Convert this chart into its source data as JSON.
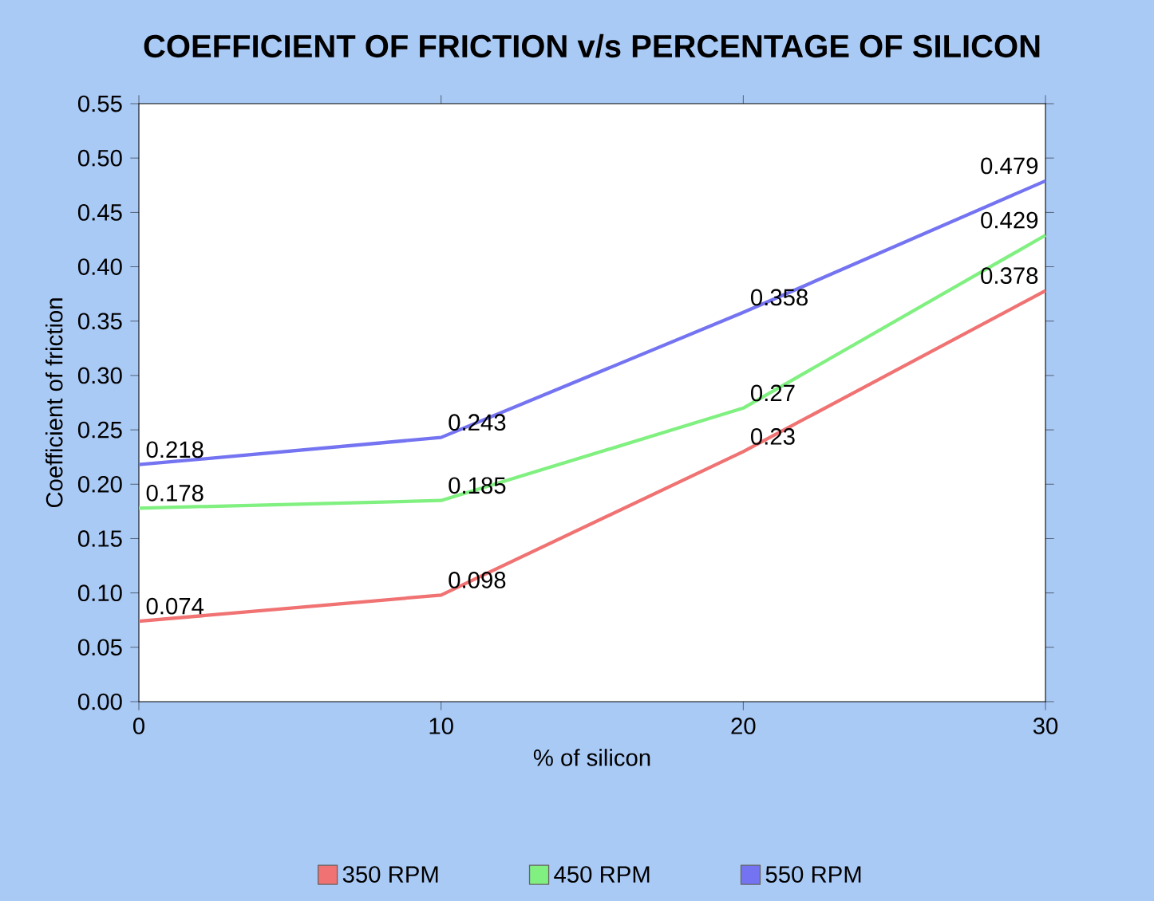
{
  "chart_data": {
    "type": "line",
    "title": "COEFFICIENT OF FRICTION v/s PERCENTAGE OF SILICON",
    "xlabel": "% of silicon",
    "ylabel": "Coefficient of friction",
    "x": [
      0,
      10,
      20,
      30
    ],
    "series": [
      {
        "name": "350 RPM",
        "color": "#f07272",
        "values": [
          0.074,
          0.098,
          0.23,
          0.378
        ]
      },
      {
        "name": "450 RPM",
        "color": "#80f080",
        "values": [
          0.178,
          0.185,
          0.27,
          0.429
        ]
      },
      {
        "name": "550 RPM",
        "color": "#7474f2",
        "values": [
          0.218,
          0.243,
          0.358,
          0.479
        ]
      }
    ],
    "xlim": [
      0,
      30
    ],
    "xticks": [
      0,
      10,
      20,
      30
    ],
    "ylim": [
      0,
      0.55
    ],
    "yticks": [
      {
        "value": 0,
        "label": "0.00"
      },
      {
        "value": 0.05,
        "label": "0.05"
      },
      {
        "value": 0.1,
        "label": "0.10"
      },
      {
        "value": 0.15,
        "label": "0.15"
      },
      {
        "value": 0.2,
        "label": "0.20"
      },
      {
        "value": 0.25,
        "label": "0.25"
      },
      {
        "value": 0.3,
        "label": "0.30"
      },
      {
        "value": 0.35,
        "label": "0.35"
      },
      {
        "value": 0.4,
        "label": "0.40"
      },
      {
        "value": 0.45,
        "label": "0.45"
      },
      {
        "value": 0.5,
        "label": "0.50"
      },
      {
        "value": 0.55,
        "label": "0.55"
      }
    ],
    "data_labels": true,
    "legend": "bottom",
    "grid": false,
    "marker": "none",
    "line_style": "solid"
  }
}
